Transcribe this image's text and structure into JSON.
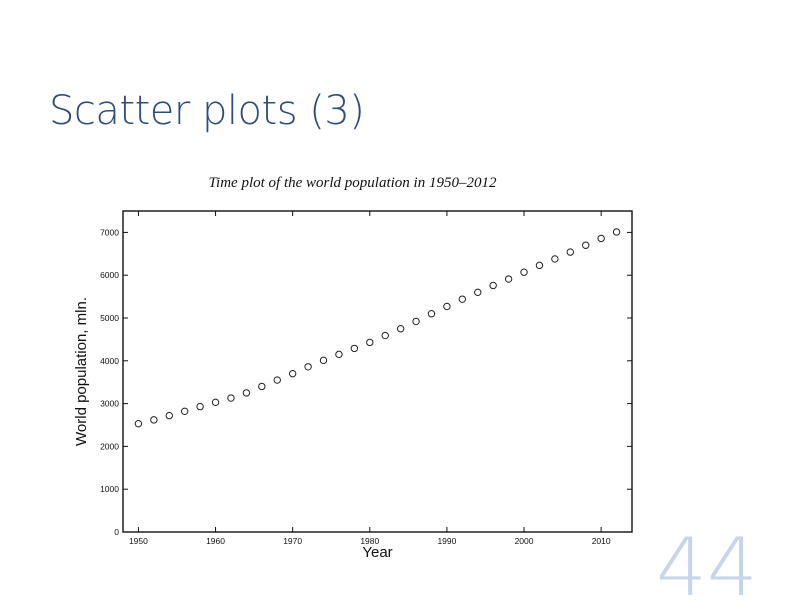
{
  "slide": {
    "title": "Scatter plots (3)",
    "page_number": "44"
  },
  "chart_data": {
    "type": "scatter",
    "title": "Time plot of the world population in 1950–2012",
    "xlabel": "Year",
    "ylabel": "World population, mln.",
    "xlim": [
      1948,
      2014
    ],
    "ylim": [
      0,
      7500
    ],
    "xticks": [
      1950,
      1960,
      1970,
      1980,
      1990,
      2000,
      2010
    ],
    "yticks": [
      0,
      1000,
      2000,
      3000,
      4000,
      5000,
      6000,
      7000
    ],
    "marker": "open-circle",
    "grid": false,
    "x": [
      1950,
      1952,
      1954,
      1956,
      1958,
      1960,
      1962,
      1964,
      1966,
      1968,
      1970,
      1972,
      1974,
      1976,
      1978,
      1980,
      1982,
      1984,
      1986,
      1988,
      1990,
      1992,
      1994,
      1996,
      1998,
      2000,
      2002,
      2004,
      2006,
      2008,
      2010,
      2012
    ],
    "y": [
      2530,
      2620,
      2720,
      2820,
      2930,
      3030,
      3130,
      3250,
      3400,
      3550,
      3700,
      3860,
      4010,
      4150,
      4290,
      4430,
      4590,
      4750,
      4920,
      5100,
      5270,
      5440,
      5600,
      5760,
      5910,
      6070,
      6230,
      6380,
      6540,
      6700,
      6860,
      7010
    ]
  }
}
